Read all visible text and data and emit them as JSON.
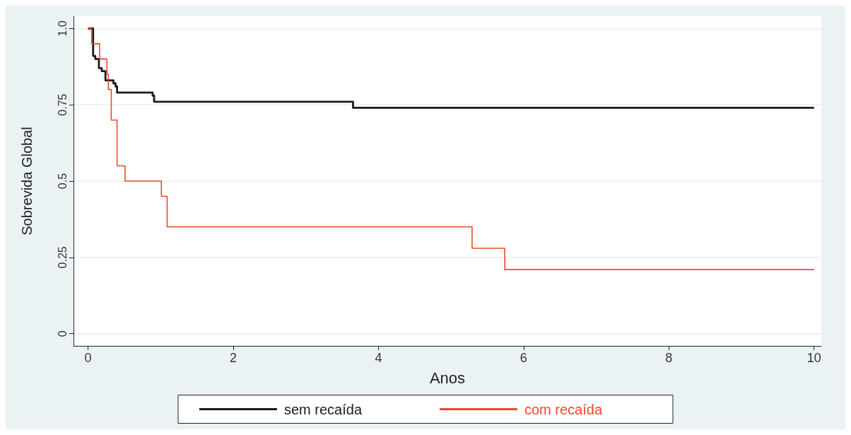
{
  "chart_data": {
    "type": "step",
    "xlabel": "Anos",
    "ylabel": "Sobrevida Global",
    "xlim": [
      -0.2,
      10.1
    ],
    "xticks": [
      0,
      2,
      4,
      6,
      8,
      10
    ],
    "ylim": [
      -0.04,
      1.04
    ],
    "yticks": [
      0,
      0.25,
      0.5,
      0.75,
      {
        "value": 1,
        "label": "1.0"
      }
    ],
    "grid": "y",
    "legend": "bottom",
    "marker": "none",
    "line_style": "solid",
    "series": [
      {
        "name": "sem recaída",
        "color": "#1a1a1a",
        "x": [
          0,
          0.07,
          0.1,
          0.15,
          0.19,
          0.24,
          0.35,
          0.38,
          0.4,
          0.89,
          0.91,
          3.65,
          10
        ],
        "values": [
          1,
          0.91,
          0.9,
          0.87,
          0.86,
          0.83,
          0.82,
          0.81,
          0.79,
          0.78,
          0.76,
          0.74,
          0.74
        ]
      },
      {
        "name": "com recaída",
        "color": "#f0462c",
        "x": [
          0,
          0.05,
          0.16,
          0.26,
          0.28,
          0.32,
          0.4,
          0.51,
          1.01,
          1.09,
          5.29,
          5.74,
          10
        ],
        "values": [
          1,
          0.95,
          0.9,
          0.85,
          0.8,
          0.7,
          0.55,
          0.5,
          0.45,
          0.35,
          0.28,
          0.21,
          0.21
        ]
      }
    ]
  }
}
